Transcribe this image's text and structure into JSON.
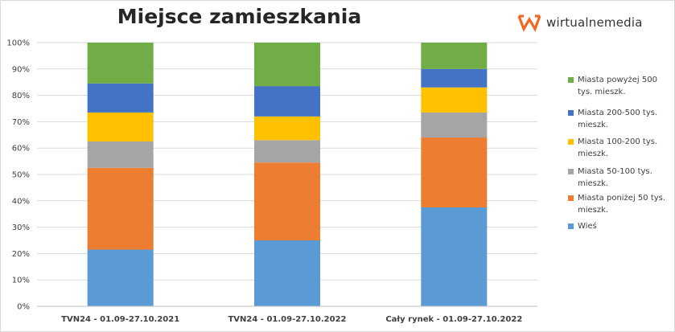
{
  "chart_data": {
    "type": "bar",
    "stacked": true,
    "percent": true,
    "title": "Miejsce zamieszkania",
    "categories": [
      "TVN24 - 01.09-27.10.2021",
      "TVN24 - 01.09-27.10.2022",
      "Cały rynek - 01.09-27.10.2022"
    ],
    "series": [
      {
        "name": "Wieś",
        "color": "#5b9bd5",
        "values": [
          21.5,
          25.0,
          37.5
        ]
      },
      {
        "name": "Miasta poniżej 50 tys. mieszk.",
        "color": "#ed7d31",
        "values": [
          31.0,
          29.5,
          26.5
        ]
      },
      {
        "name": "Miasta 50-100 tys. mieszk.",
        "color": "#a5a5a5",
        "values": [
          10.0,
          8.5,
          9.5
        ]
      },
      {
        "name": "Miasta 100-200 tys. mieszk.",
        "color": "#ffc000",
        "values": [
          11.0,
          9.0,
          9.5
        ]
      },
      {
        "name": "Miasta 200-500 tys. mieszk.",
        "color": "#4472c4",
        "values": [
          11.0,
          11.5,
          7.0
        ]
      },
      {
        "name": "Miasta powyżej 500 tys. mieszk.",
        "color": "#70ad47",
        "values": [
          15.5,
          16.5,
          10.0
        ]
      }
    ],
    "ylim": [
      0,
      100
    ],
    "yticks": [
      "0%",
      "10%",
      "20%",
      "30%",
      "40%",
      "50%",
      "60%",
      "70%",
      "80%",
      "90%",
      "100%"
    ],
    "grid": true,
    "legend_position": "right",
    "legend_order": [
      5,
      4,
      3,
      2,
      1,
      0
    ]
  },
  "logo": {
    "text": "wirtualnemedia",
    "color": "#f26522"
  }
}
